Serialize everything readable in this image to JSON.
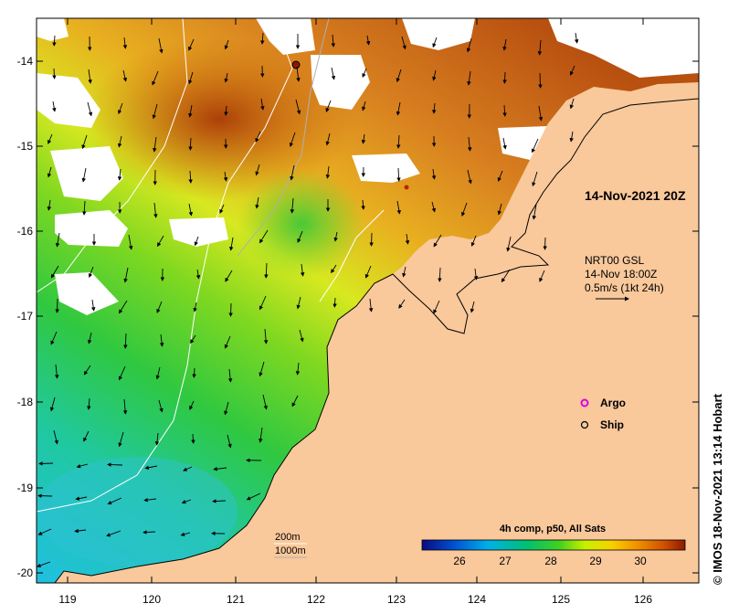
{
  "map": {
    "date_label": "14-Nov-2021 20Z",
    "current_source": "NRT00 GSL",
    "current_time": "14-Nov 18:00Z",
    "vector_scale": "0.5m/s (1kt 24h)",
    "legend": {
      "argo": "Argo",
      "ship": "Ship"
    },
    "isobaths": [
      "200m",
      "1000m"
    ],
    "colorbar": {
      "title": "4h comp, p50, All Sats",
      "ticks": [
        "26",
        "27",
        "28",
        "29",
        "30"
      ]
    },
    "credit": "© IMOS 18-Nov-2021 13:14 Hobart",
    "lat_labels": [
      "-14",
      "-15",
      "-16",
      "-17",
      "-18",
      "-19",
      "-20"
    ],
    "lon_labels": [
      "119",
      "120",
      "121",
      "122",
      "123",
      "124",
      "125",
      "126"
    ],
    "colors": {
      "land": "#f9c89b",
      "cold": "#1a1aa0",
      "warm": "#8b1a00"
    }
  }
}
